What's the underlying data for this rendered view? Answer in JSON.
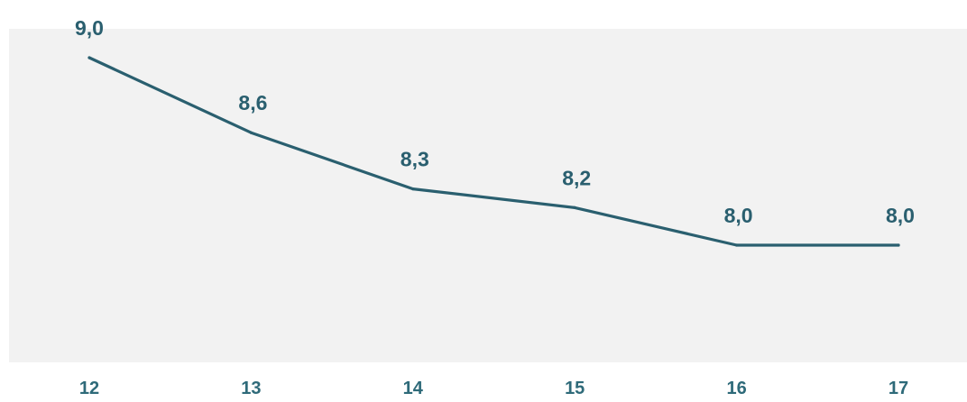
{
  "colors": {
    "plot_background": "#f2f2f2",
    "line": "#2a5f6f",
    "data_label": "#2a5f6f",
    "tick_label": "#2e6a79"
  },
  "chart_data": {
    "type": "line",
    "categories": [
      "12",
      "13",
      "14",
      "15",
      "16",
      "17"
    ],
    "values": [
      9.0,
      8.6,
      8.3,
      8.2,
      8.0,
      8.0
    ],
    "data_labels": [
      "9,0",
      "8,6",
      "8,3",
      "8,2",
      "8,0",
      "8,0"
    ],
    "title": "",
    "xlabel": "",
    "ylabel": "",
    "ylim": [
      7.0,
      9.2
    ],
    "grid": false,
    "legend": "none"
  }
}
